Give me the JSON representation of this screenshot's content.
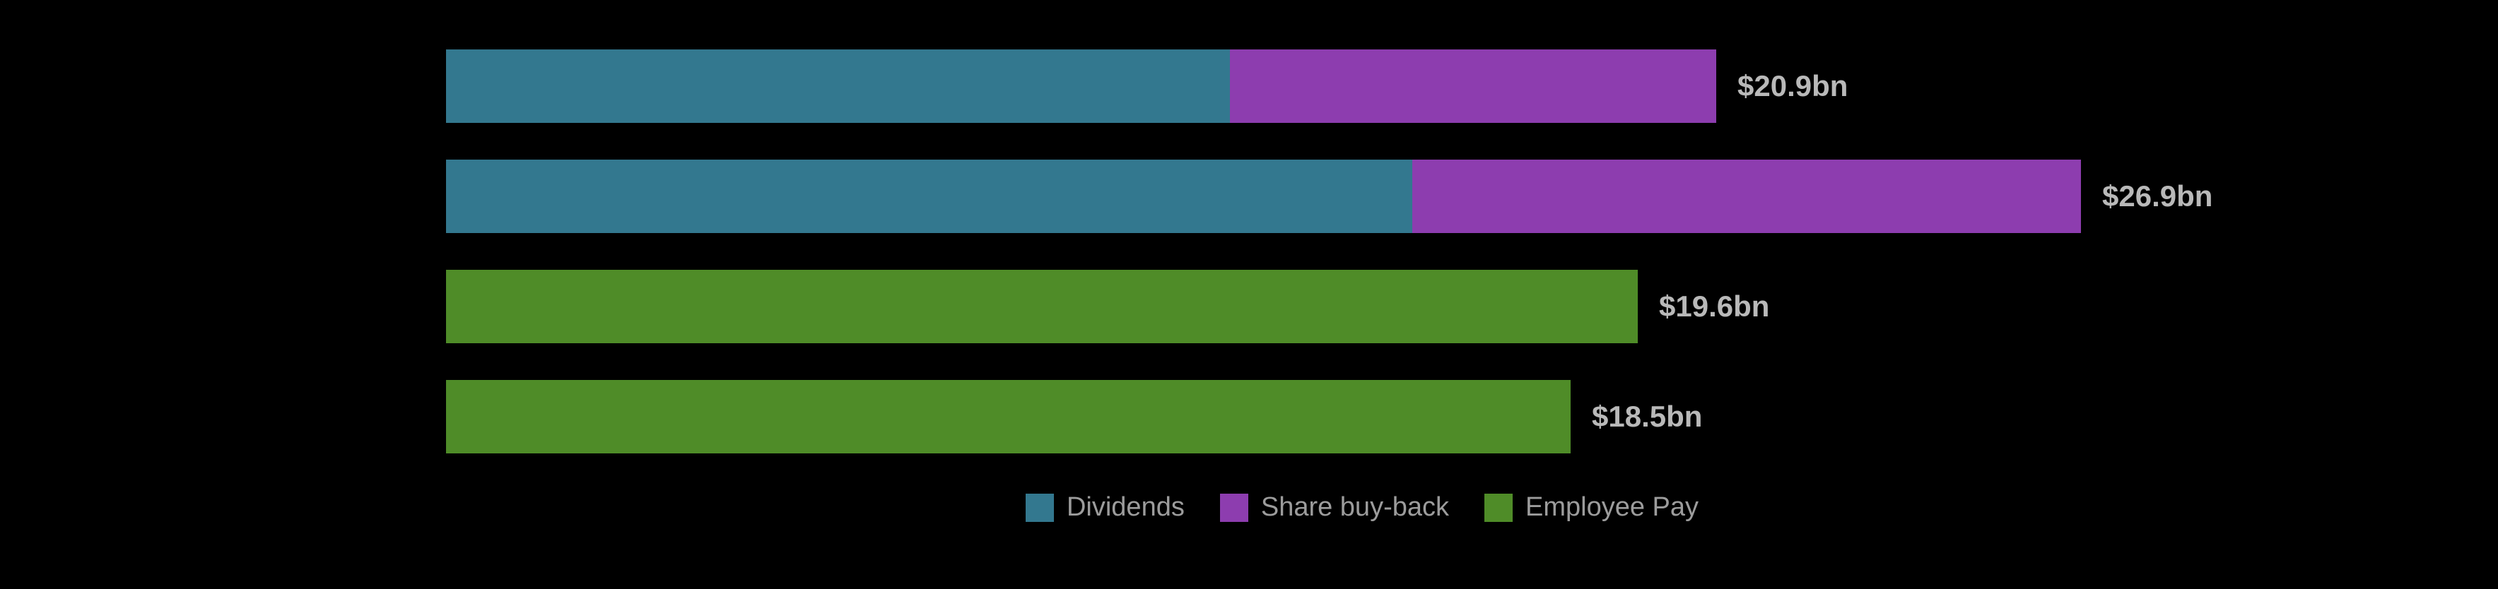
{
  "chart_data": {
    "type": "bar",
    "orientation": "horizontal",
    "stacked": true,
    "title": "",
    "xlabel": "",
    "ylabel": "",
    "xlim": [
      0,
      26.9
    ],
    "unit": "$bn",
    "background": "#000000",
    "grid": false,
    "legend_position": "bottom",
    "bars": [
      {
        "label": "$20.9bn",
        "total": 20.9,
        "segments": [
          {
            "series": "Dividends",
            "value": 12.9
          },
          {
            "series": "Share buy-back",
            "value": 8.0
          }
        ]
      },
      {
        "label": "$26.9bn",
        "total": 26.9,
        "segments": [
          {
            "series": "Dividends",
            "value": 15.9
          },
          {
            "series": "Share buy-back",
            "value": 11.0
          }
        ]
      },
      {
        "label": "$19.6bn",
        "total": 19.6,
        "segments": [
          {
            "series": "Employee Pay",
            "value": 19.6
          }
        ]
      },
      {
        "label": "$18.5bn",
        "total": 18.5,
        "segments": [
          {
            "series": "Employee Pay",
            "value": 18.5
          }
        ]
      }
    ],
    "legend": [
      {
        "label": "Dividends",
        "color": "#33788f"
      },
      {
        "label": "Share buy-back",
        "color": "#8d3daf"
      },
      {
        "label": "Employee Pay",
        "color": "#4f8c28"
      }
    ],
    "value_label_color": "#b9b9b9",
    "legend_text_color": "#9c9c9c"
  }
}
